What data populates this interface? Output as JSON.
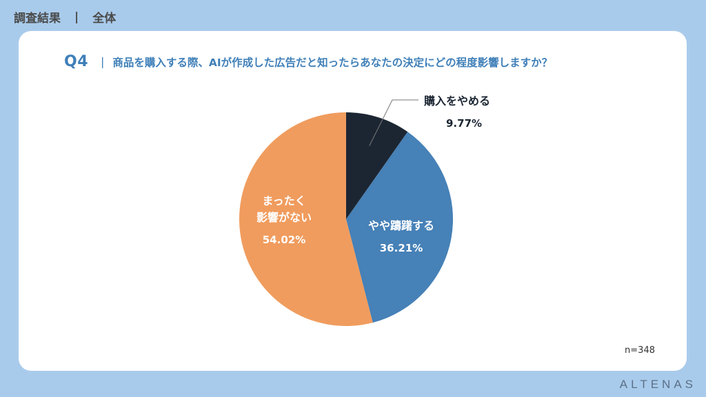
{
  "header": {
    "title": "調査結果",
    "separator": "|",
    "scope": "全体"
  },
  "question": {
    "number": "Q4",
    "separator": "|",
    "text": "商品を購入する際、AIが作成した広告だと知ったらあなたの決定にどの程度影響しますか？"
  },
  "chart_data": {
    "type": "pie",
    "title": "",
    "start_angle_deg": 0,
    "direction": "clockwise",
    "slices": [
      {
        "label_lines": [
          "購入をやめる"
        ],
        "value": 9.77,
        "value_label": "9.77%",
        "color": "#1c2633",
        "label_color": "#1c2633"
      },
      {
        "label_lines": [
          "やや躊躇する"
        ],
        "value": 36.21,
        "value_label": "36.21%",
        "color": "#4681b7",
        "label_color": "#ffffff"
      },
      {
        "label_lines": [
          "まったく",
          "影響がない"
        ],
        "value": 54.02,
        "value_label": "54.02%",
        "color": "#f09c5e",
        "label_color": "#ffffff"
      }
    ]
  },
  "footer": {
    "n_label": "n=348",
    "brand": "ALTENAS"
  },
  "colors": {
    "background": "#a9cbeb",
    "card": "#ffffff",
    "accent": "#3f7fb8"
  }
}
